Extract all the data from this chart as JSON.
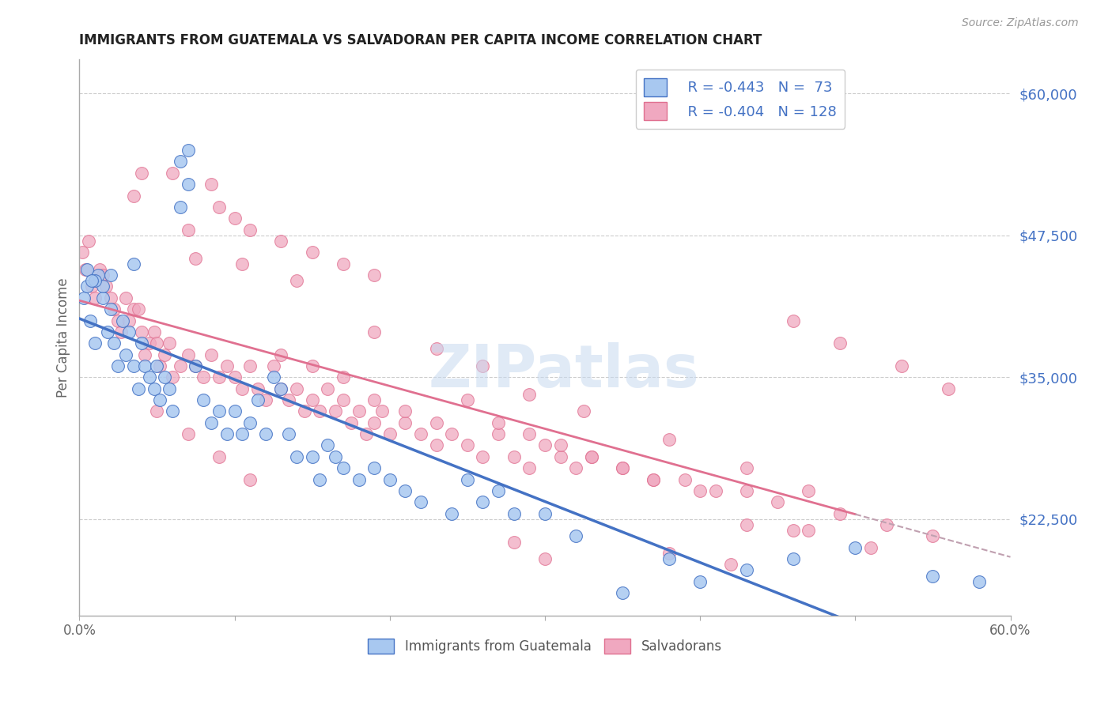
{
  "title": "IMMIGRANTS FROM GUATEMALA VS SALVADORAN PER CAPITA INCOME CORRELATION CHART",
  "source": "Source: ZipAtlas.com",
  "ylabel": "Per Capita Income",
  "yticks": [
    22500,
    35000,
    47500,
    60000
  ],
  "ytick_labels": [
    "$22,500",
    "$35,000",
    "$47,500",
    "$60,000"
  ],
  "legend_r1": "R = -0.443",
  "legend_n1": "N =  73",
  "legend_r2": "R = -0.404",
  "legend_n2": "N = 128",
  "color_blue": "#a8c8f0",
  "color_pink": "#f0a8c0",
  "line_blue": "#4472c4",
  "line_pink": "#e07090",
  "watermark": "ZIPatlas",
  "blue_scatter_x": [
    0.3,
    0.5,
    0.7,
    1.0,
    1.2,
    1.5,
    1.8,
    2.0,
    2.2,
    2.5,
    2.8,
    3.0,
    3.2,
    3.5,
    3.8,
    4.0,
    4.2,
    4.5,
    4.8,
    5.0,
    5.2,
    5.5,
    5.8,
    6.0,
    6.5,
    7.0,
    7.5,
    8.0,
    8.5,
    9.0,
    9.5,
    10.0,
    10.5,
    11.0,
    11.5,
    12.0,
    12.5,
    13.0,
    13.5,
    14.0,
    15.0,
    15.5,
    16.0,
    16.5,
    17.0,
    18.0,
    19.0,
    20.0,
    21.0,
    22.0,
    24.0,
    25.0,
    26.0,
    27.0,
    28.0,
    30.0,
    32.0,
    35.0,
    38.0,
    40.0,
    43.0,
    46.0,
    50.0,
    55.0,
    58.0,
    6.5,
    7.0,
    3.5,
    2.0,
    1.5,
    1.0,
    0.5,
    0.8
  ],
  "blue_scatter_y": [
    42000,
    43000,
    40000,
    38000,
    44000,
    42000,
    39000,
    41000,
    38000,
    36000,
    40000,
    37000,
    39000,
    36000,
    34000,
    38000,
    36000,
    35000,
    34000,
    36000,
    33000,
    35000,
    34000,
    32000,
    54000,
    55000,
    36000,
    33000,
    31000,
    32000,
    30000,
    32000,
    30000,
    31000,
    33000,
    30000,
    35000,
    34000,
    30000,
    28000,
    28000,
    26000,
    29000,
    28000,
    27000,
    26000,
    27000,
    26000,
    25000,
    24000,
    23000,
    26000,
    24000,
    25000,
    23000,
    23000,
    21000,
    16000,
    19000,
    17000,
    18000,
    19000,
    20000,
    17500,
    17000,
    50000,
    52000,
    45000,
    44000,
    43000,
    43500,
    44500,
    43500
  ],
  "pink_scatter_x": [
    0.2,
    0.4,
    0.6,
    0.8,
    1.0,
    1.3,
    1.5,
    1.7,
    2.0,
    2.2,
    2.5,
    2.7,
    3.0,
    3.2,
    3.5,
    3.8,
    4.0,
    4.2,
    4.5,
    4.8,
    5.0,
    5.2,
    5.5,
    5.8,
    6.0,
    6.5,
    7.0,
    7.5,
    8.0,
    8.5,
    9.0,
    9.5,
    10.0,
    10.5,
    11.0,
    11.5,
    12.0,
    12.5,
    13.0,
    13.5,
    14.0,
    14.5,
    15.0,
    15.5,
    16.0,
    16.5,
    17.0,
    17.5,
    18.0,
    18.5,
    19.0,
    19.5,
    20.0,
    21.0,
    22.0,
    23.0,
    24.0,
    25.0,
    26.0,
    27.0,
    28.0,
    29.0,
    30.0,
    31.0,
    32.0,
    33.0,
    35.0,
    37.0,
    39.0,
    41.0,
    43.0,
    45.0,
    47.0,
    49.0,
    52.0,
    55.0,
    7.0,
    9.0,
    11.0,
    3.5,
    13.0,
    15.0,
    17.0,
    19.0,
    21.0,
    23.0,
    25.0,
    27.0,
    4.0,
    6.0,
    8.5,
    10.0,
    29.0,
    31.0,
    33.0,
    35.0,
    37.0,
    40.0,
    43.0,
    46.0,
    7.5,
    10.5,
    14.0,
    19.0,
    23.0,
    26.0,
    29.0,
    32.5,
    38.0,
    43.0,
    47.0,
    51.0,
    28.0,
    30.0,
    38.0,
    42.0,
    46.0,
    49.0,
    53.0,
    56.0,
    5.0,
    7.0,
    9.0,
    11.0,
    13.0,
    15.0,
    17.0,
    19.0
  ],
  "pink_scatter_y": [
    46000,
    44500,
    47000,
    43000,
    42000,
    44500,
    44000,
    43000,
    42000,
    41000,
    40000,
    39000,
    42000,
    40000,
    41000,
    41000,
    39000,
    37000,
    38000,
    39000,
    38000,
    36000,
    37000,
    38000,
    35000,
    36000,
    37000,
    36000,
    35000,
    37000,
    35000,
    36000,
    35000,
    34000,
    36000,
    34000,
    33000,
    36000,
    34000,
    33000,
    34000,
    32000,
    33000,
    32000,
    34000,
    32000,
    33000,
    31000,
    32000,
    30000,
    31000,
    32000,
    30000,
    31000,
    30000,
    29000,
    30000,
    29000,
    28000,
    30000,
    28000,
    27000,
    29000,
    28000,
    27000,
    28000,
    27000,
    26000,
    26000,
    25000,
    25000,
    24000,
    25000,
    23000,
    22000,
    21000,
    48000,
    50000,
    48000,
    51000,
    37000,
    36000,
    35000,
    33000,
    32000,
    31000,
    33000,
    31000,
    53000,
    53000,
    52000,
    49000,
    30000,
    29000,
    28000,
    27000,
    26000,
    25000,
    22000,
    21500,
    45500,
    45000,
    43500,
    39000,
    37500,
    36000,
    33500,
    32000,
    29500,
    27000,
    21500,
    20000,
    20500,
    19000,
    19500,
    18500,
    40000,
    38000,
    36000,
    34000,
    32000,
    30000,
    28000,
    26000,
    47000,
    46000,
    45000,
    44000
  ]
}
